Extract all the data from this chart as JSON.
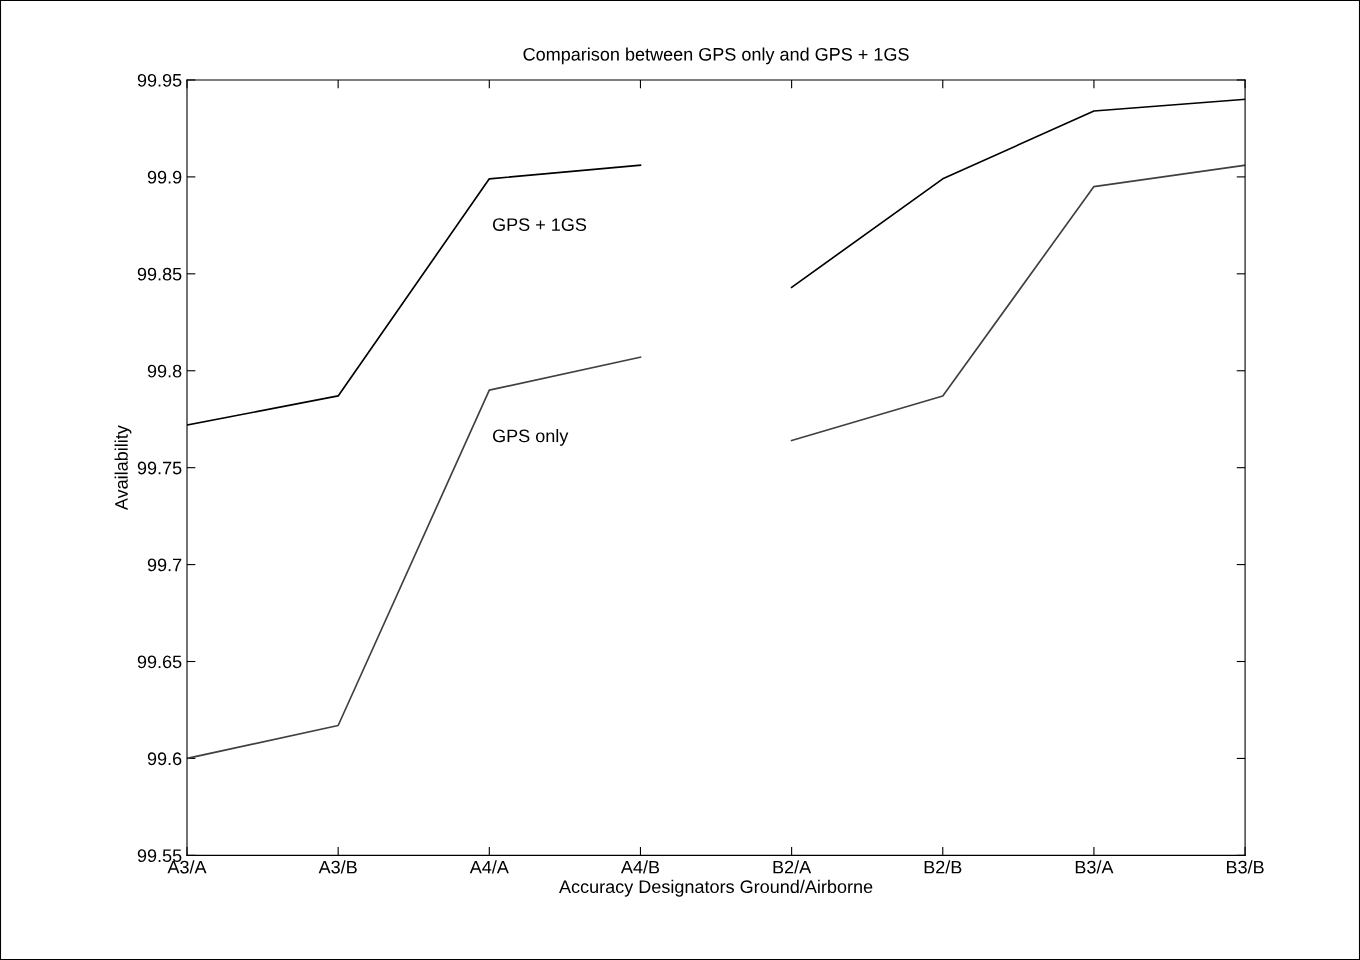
{
  "chart_data": {
    "type": "line",
    "title": "Comparison between GPS only and GPS + 1GS",
    "xlabel": "Accuracy Designators Ground/Airborne",
    "ylabel": "Availability",
    "categories": [
      "A3/A",
      "A3/B",
      "A4/A",
      "A4/B",
      "B2/A",
      "B2/B",
      "B3/A",
      "B3/B"
    ],
    "series": [
      {
        "name": "GPS + 1GS",
        "color": "#000000",
        "values": [
          99.772,
          99.787,
          99.899,
          99.906,
          null,
          null,
          null,
          null
        ]
      },
      {
        "color": "#000000",
        "values": [
          null,
          null,
          null,
          null,
          99.843,
          99.899,
          99.934,
          99.94
        ]
      },
      {
        "name": "GPS only",
        "color": "#404040",
        "values": [
          99.6,
          99.617,
          99.79,
          99.807,
          null,
          null,
          null,
          null
        ]
      },
      {
        "color": "#404040",
        "values": [
          null,
          null,
          null,
          null,
          99.764,
          99.787,
          99.895,
          99.906
        ]
      }
    ],
    "ylim": [
      99.55,
      99.95
    ],
    "yticks": [
      99.55,
      99.6,
      99.65,
      99.7,
      99.75,
      99.8,
      99.85,
      99.9,
      99.95
    ],
    "grid": false,
    "legend": false,
    "marker": "none",
    "line_style": "solid"
  }
}
